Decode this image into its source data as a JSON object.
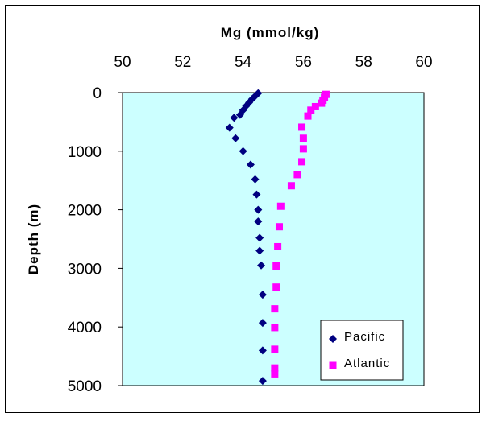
{
  "chart_data": {
    "type": "scatter",
    "xlabel": "Mg (mmol/kg)",
    "ylabel": "Depth (m)",
    "xlim": [
      50,
      60
    ],
    "ylim": [
      0,
      5000
    ],
    "x_ticks": [
      50,
      52,
      54,
      56,
      58,
      60
    ],
    "y_ticks": [
      0,
      1000,
      2000,
      3000,
      4000,
      5000
    ],
    "y_inverted": true,
    "x_axis_position": "top",
    "legend_position": "bottom-right",
    "plot_background": "#ccffff",
    "series": [
      {
        "name": "Pacific",
        "marker": "diamond",
        "color": "#000080",
        "points": [
          [
            54.5,
            10
          ],
          [
            54.4,
            60
          ],
          [
            54.3,
            110
          ],
          [
            54.2,
            170
          ],
          [
            54.1,
            230
          ],
          [
            54.0,
            300
          ],
          [
            53.9,
            380
          ],
          [
            53.7,
            430
          ],
          [
            53.55,
            600
          ],
          [
            53.75,
            780
          ],
          [
            54.0,
            1000
          ],
          [
            54.25,
            1230
          ],
          [
            54.4,
            1480
          ],
          [
            54.45,
            1740
          ],
          [
            54.5,
            2000
          ],
          [
            54.5,
            2200
          ],
          [
            54.55,
            2480
          ],
          [
            54.55,
            2700
          ],
          [
            54.6,
            2950
          ],
          [
            54.65,
            3450
          ],
          [
            54.65,
            3930
          ],
          [
            54.65,
            4400
          ],
          [
            54.65,
            4920
          ]
        ]
      },
      {
        "name": "Atlantic",
        "marker": "square",
        "color": "#ff00ff",
        "points": [
          [
            56.75,
            30
          ],
          [
            56.7,
            80
          ],
          [
            56.65,
            130
          ],
          [
            56.6,
            180
          ],
          [
            56.4,
            240
          ],
          [
            56.25,
            300
          ],
          [
            56.15,
            400
          ],
          [
            55.95,
            590
          ],
          [
            56.0,
            780
          ],
          [
            56.0,
            960
          ],
          [
            55.95,
            1180
          ],
          [
            55.8,
            1400
          ],
          [
            55.6,
            1590
          ],
          [
            55.25,
            1940
          ],
          [
            55.2,
            2290
          ],
          [
            55.15,
            2630
          ],
          [
            55.1,
            2960
          ],
          [
            55.1,
            3320
          ],
          [
            55.05,
            3690
          ],
          [
            55.05,
            4010
          ],
          [
            55.05,
            4380
          ],
          [
            55.05,
            4700
          ],
          [
            55.05,
            4800
          ]
        ]
      }
    ]
  }
}
